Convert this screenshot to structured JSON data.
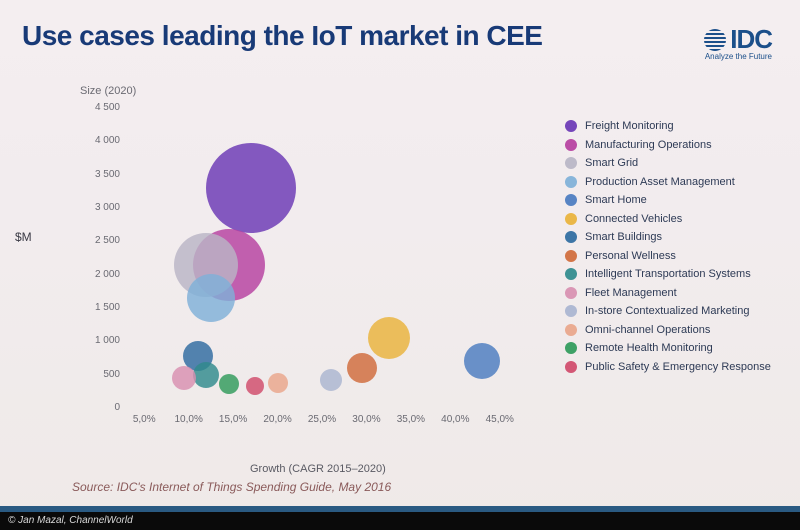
{
  "title": "Use cases leading the IoT market in CEE",
  "logo": {
    "name": "IDC",
    "tagline": "Analyze the Future"
  },
  "chart": {
    "type": "bubble",
    "y_title": "Size (2020)",
    "y_unit": "$M",
    "x_title": "Growth (CAGR 2015–2020)",
    "xlim": [
      2.5,
      47.5
    ],
    "ylim": [
      0,
      4500
    ],
    "xtick_step": 5,
    "ytick_step": 500,
    "xtick_format": "percent_comma",
    "ytick_format": "thousand_space",
    "background_color": "#f2ecee",
    "title_fontsize": 28,
    "title_color": "#183a77",
    "label_fontsize": 10,
    "label_color": "#6a6a72",
    "bubble_opacity": 0.82,
    "series": [
      {
        "name": "Freight Monitoring",
        "x": 17.0,
        "y": 3300,
        "size": 90,
        "color": "#6a37b5"
      },
      {
        "name": "Manufacturing Operations",
        "x": 14.5,
        "y": 2150,
        "size": 72,
        "color": "#b63fa0"
      },
      {
        "name": "Smart Grid",
        "x": 12.0,
        "y": 2150,
        "size": 64,
        "color": "#b9b5c6"
      },
      {
        "name": "Production Asset Management",
        "x": 12.5,
        "y": 1650,
        "size": 48,
        "color": "#7fb0d8"
      },
      {
        "name": "Smart Home",
        "x": 43.0,
        "y": 700,
        "size": 36,
        "color": "#4a7bc0"
      },
      {
        "name": "Connected Vehicles",
        "x": 32.5,
        "y": 1050,
        "size": 42,
        "color": "#e9b23a"
      },
      {
        "name": "Smart Buildings",
        "x": 11.0,
        "y": 780,
        "size": 30,
        "color": "#2e6aa0"
      },
      {
        "name": "Personal Wellness",
        "x": 29.5,
        "y": 600,
        "size": 30,
        "color": "#d06a3a"
      },
      {
        "name": "Intelligent Transportation Systems",
        "x": 12.0,
        "y": 500,
        "size": 26,
        "color": "#2f8a8c"
      },
      {
        "name": "Fleet Management",
        "x": 9.5,
        "y": 450,
        "size": 24,
        "color": "#d88fb0"
      },
      {
        "name": "In-store Contextualized Marketing",
        "x": 26.0,
        "y": 420,
        "size": 22,
        "color": "#a9b4d0"
      },
      {
        "name": "Omni-channel Operations",
        "x": 20.0,
        "y": 370,
        "size": 20,
        "color": "#e9a58a"
      },
      {
        "name": "Remote Health Monitoring",
        "x": 14.5,
        "y": 360,
        "size": 20,
        "color": "#2f9a5a"
      },
      {
        "name": "Public Safety & Emergency Response",
        "x": 17.5,
        "y": 330,
        "size": 18,
        "color": "#d04a6a"
      }
    ]
  },
  "source": "Source: IDC's  Internet of Things Spending Guide, May 2016",
  "credit": "© Jan Mazal, ChannelWorld"
}
